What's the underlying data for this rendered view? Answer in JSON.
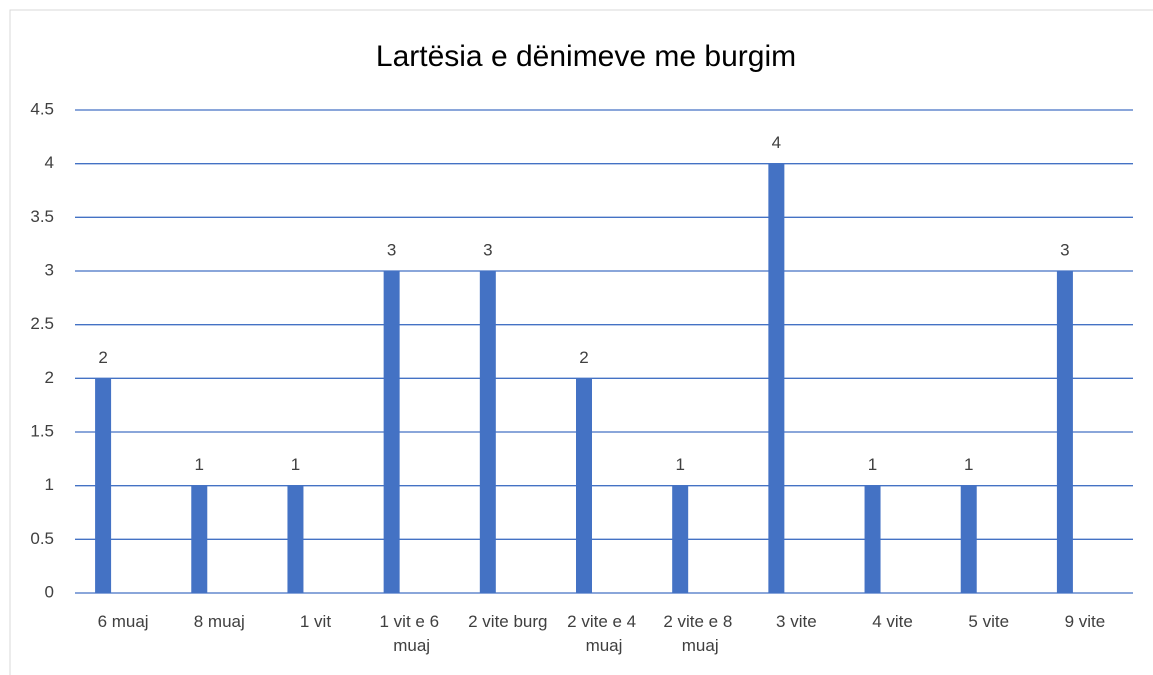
{
  "chart_data": {
    "type": "bar",
    "title": "Lartësia e dënimeve me burgim",
    "categories": [
      "6 muaj",
      "8 muaj",
      "1 vit",
      "1 vit e 6 muaj",
      "2 vite burg",
      "2 vite e 4 muaj",
      "2 vite e 8 muaj",
      "3 vite",
      "4 vite",
      "5 vite",
      "9 vite"
    ],
    "values": [
      2,
      1,
      1,
      3,
      3,
      2,
      1,
      4,
      1,
      1,
      3
    ],
    "color": "#4472c4",
    "ylim": [
      0,
      4.5
    ],
    "yticks": [
      0,
      0.5,
      1,
      1.5,
      2,
      2.5,
      3,
      3.5,
      4,
      4.5
    ],
    "grid": true
  }
}
